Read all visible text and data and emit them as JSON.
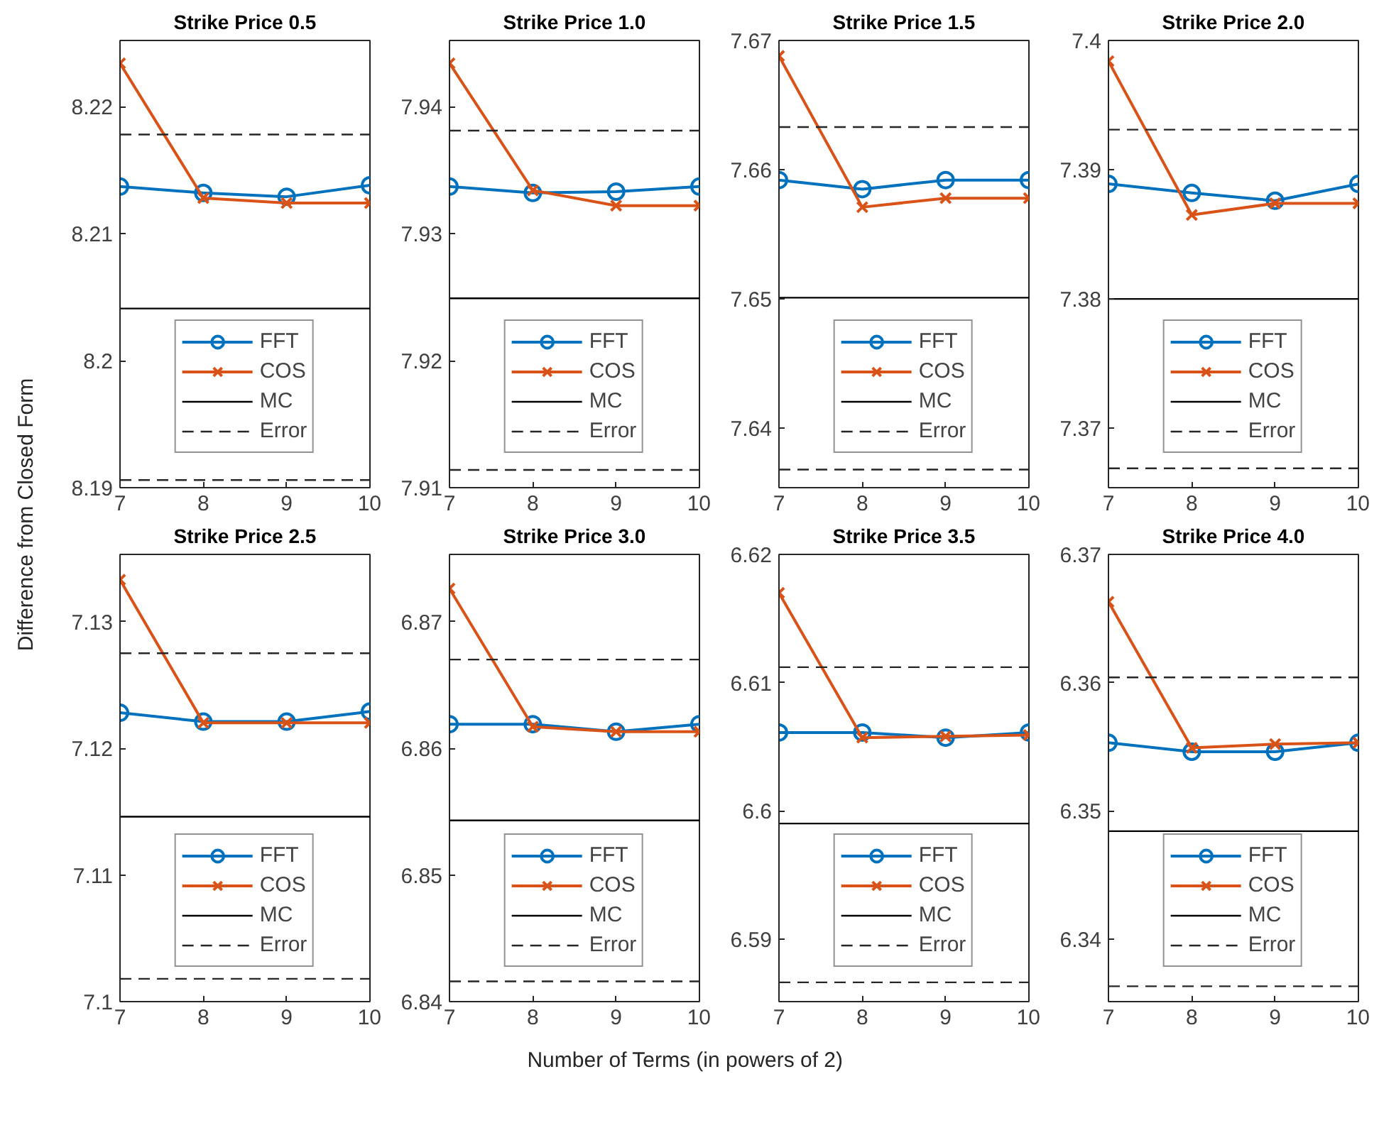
{
  "chart_data": [
    {
      "type": "line",
      "title": "Strike Price 0.5",
      "ylabel": "Difference from Closed Form",
      "x": [
        7,
        8,
        9,
        10
      ],
      "xlim": [
        7,
        10
      ],
      "xticks": [
        7,
        8,
        9,
        10
      ],
      "ylim": [
        8.19,
        8.2252
      ],
      "yticks": [
        8.19,
        8.2,
        8.21,
        8.22
      ],
      "grid": false,
      "legend": "bottom",
      "series": [
        {
          "name": "FFT",
          "color": "#0072bd",
          "marker": "circle",
          "values": [
            8.2137,
            8.2132,
            8.2129,
            8.2138
          ]
        },
        {
          "name": "COS",
          "color": "#d95319",
          "marker": "cross",
          "values": [
            8.2234,
            8.2128,
            8.2124,
            8.2124
          ]
        }
      ],
      "ref_lines": [
        {
          "axis": "y",
          "value": 8.2041,
          "label": "MC",
          "color": "#000000",
          "line_style": "solid"
        },
        {
          "axis": "y",
          "value": 8.2178,
          "label": "Error",
          "color": "#262626",
          "line_style": "dashed"
        },
        {
          "axis": "y",
          "value": 8.1906,
          "color": "#262626",
          "line_style": "dashed"
        }
      ]
    },
    {
      "type": "line",
      "title": "Strike Price 1.0",
      "x": [
        7,
        8,
        9,
        10
      ],
      "xlim": [
        7,
        10
      ],
      "xticks": [
        7,
        8,
        9,
        10
      ],
      "ylim": [
        7.91,
        7.9452
      ],
      "yticks": [
        7.91,
        7.92,
        7.93,
        7.94
      ],
      "grid": false,
      "legend": "bottom",
      "series": [
        {
          "name": "FFT",
          "color": "#0072bd",
          "marker": "circle",
          "values": [
            7.9337,
            7.9332,
            7.9333,
            7.9337
          ]
        },
        {
          "name": "COS",
          "color": "#d95319",
          "marker": "cross",
          "values": [
            7.9434,
            7.9334,
            7.9322,
            7.9322
          ]
        }
      ],
      "ref_lines": [
        {
          "axis": "y",
          "value": 7.9249,
          "label": "MC",
          "color": "#000000",
          "line_style": "solid"
        },
        {
          "axis": "y",
          "value": 7.9381,
          "label": "Error",
          "color": "#262626",
          "line_style": "dashed"
        },
        {
          "axis": "y",
          "value": 7.9114,
          "color": "#262626",
          "line_style": "dashed"
        }
      ]
    },
    {
      "type": "line",
      "title": "Strike Price 1.5",
      "x": [
        7,
        8,
        9,
        10
      ],
      "xlim": [
        7,
        10
      ],
      "xticks": [
        7,
        8,
        9,
        10
      ],
      "ylim": [
        7.6354,
        7.67
      ],
      "yticks": [
        7.64,
        7.65,
        7.66,
        7.67
      ],
      "grid": false,
      "legend": "bottom",
      "series": [
        {
          "name": "FFT",
          "color": "#0072bd",
          "marker": "circle",
          "values": [
            7.6592,
            7.6585,
            7.6592,
            7.6592
          ]
        },
        {
          "name": "COS",
          "color": "#d95319",
          "marker": "cross",
          "values": [
            7.6688,
            7.6571,
            7.6578,
            7.6578
          ]
        }
      ],
      "ref_lines": [
        {
          "axis": "y",
          "value": 7.6501,
          "label": "MC",
          "color": "#000000",
          "line_style": "solid"
        },
        {
          "axis": "y",
          "value": 7.6633,
          "label": "Error",
          "color": "#262626",
          "line_style": "dashed"
        },
        {
          "axis": "y",
          "value": 7.6368,
          "color": "#262626",
          "line_style": "dashed"
        }
      ]
    },
    {
      "type": "line",
      "title": "Strike Price 2.0",
      "x": [
        7,
        8,
        9,
        10
      ],
      "xlim": [
        7,
        10
      ],
      "xticks": [
        7,
        8,
        9,
        10
      ],
      "ylim": [
        7.3654,
        7.4
      ],
      "yticks": [
        7.37,
        7.38,
        7.39,
        7.4
      ],
      "grid": false,
      "legend": "bottom",
      "series": [
        {
          "name": "FFT",
          "color": "#0072bd",
          "marker": "circle",
          "values": [
            7.3889,
            7.3882,
            7.3876,
            7.3889
          ]
        },
        {
          "name": "COS",
          "color": "#d95319",
          "marker": "cross",
          "values": [
            7.3984,
            7.3865,
            7.3874,
            7.3874
          ]
        }
      ],
      "ref_lines": [
        {
          "axis": "y",
          "value": 7.38,
          "label": "MC",
          "color": "#000000",
          "line_style": "solid"
        },
        {
          "axis": "y",
          "value": 7.3931,
          "label": "Error",
          "color": "#262626",
          "line_style": "dashed"
        },
        {
          "axis": "y",
          "value": 7.3669,
          "color": "#262626",
          "line_style": "dashed"
        }
      ]
    },
    {
      "type": "line",
      "title": "Strike Price 2.5",
      "x": [
        7,
        8,
        9,
        10
      ],
      "xlim": [
        7,
        10
      ],
      "xticks": [
        7,
        8,
        9,
        10
      ],
      "ylim": [
        7.1,
        7.1353
      ],
      "yticks": [
        7.1,
        7.11,
        7.12,
        7.13
      ],
      "grid": false,
      "legend": "bottom",
      "series": [
        {
          "name": "FFT",
          "color": "#0072bd",
          "marker": "circle",
          "values": [
            7.1228,
            7.1221,
            7.1221,
            7.1229
          ]
        },
        {
          "name": "COS",
          "color": "#d95319",
          "marker": "cross",
          "values": [
            7.1333,
            7.122,
            7.122,
            7.122
          ]
        }
      ],
      "ref_lines": [
        {
          "axis": "y",
          "value": 7.1146,
          "label": "MC",
          "color": "#000000",
          "line_style": "solid"
        },
        {
          "axis": "y",
          "value": 7.1275,
          "label": "Error",
          "color": "#262626",
          "line_style": "dashed"
        },
        {
          "axis": "y",
          "value": 7.1018,
          "color": "#262626",
          "line_style": "dashed"
        }
      ]
    },
    {
      "type": "line",
      "title": "Strike Price 3.0",
      "xlabel": "Number of Terms (in powers of 2)",
      "x": [
        7,
        8,
        9,
        10
      ],
      "xlim": [
        7,
        10
      ],
      "xticks": [
        7,
        8,
        9,
        10
      ],
      "ylim": [
        6.84,
        6.8753
      ],
      "yticks": [
        6.84,
        6.85,
        6.86,
        6.87
      ],
      "grid": false,
      "legend": "bottom",
      "series": [
        {
          "name": "FFT",
          "color": "#0072bd",
          "marker": "circle",
          "values": [
            6.8619,
            6.8619,
            6.8613,
            6.8619
          ]
        },
        {
          "name": "COS",
          "color": "#d95319",
          "marker": "cross",
          "values": [
            6.8726,
            6.8617,
            6.8613,
            6.8613
          ]
        }
      ],
      "ref_lines": [
        {
          "axis": "y",
          "value": 6.8543,
          "label": "MC",
          "color": "#000000",
          "line_style": "solid"
        },
        {
          "axis": "y",
          "value": 6.867,
          "label": "Error",
          "color": "#262626",
          "line_style": "dashed"
        },
        {
          "axis": "y",
          "value": 6.8416,
          "color": "#262626",
          "line_style": "dashed"
        }
      ]
    },
    {
      "type": "line",
      "title": "Strike Price 3.5",
      "x": [
        7,
        8,
        9,
        10
      ],
      "xlim": [
        7,
        10
      ],
      "xticks": [
        7,
        8,
        9,
        10
      ],
      "ylim": [
        6.5851,
        6.62
      ],
      "yticks": [
        6.59,
        6.6,
        6.61,
        6.62
      ],
      "grid": false,
      "legend": "bottom",
      "series": [
        {
          "name": "FFT",
          "color": "#0072bd",
          "marker": "circle",
          "values": [
            6.6061,
            6.6061,
            6.6057,
            6.6061
          ]
        },
        {
          "name": "COS",
          "color": "#d95319",
          "marker": "cross",
          "values": [
            6.617,
            6.6057,
            6.6058,
            6.6059
          ]
        }
      ],
      "ref_lines": [
        {
          "axis": "y",
          "value": 6.599,
          "label": "MC",
          "color": "#000000",
          "line_style": "solid"
        },
        {
          "axis": "y",
          "value": 6.6112,
          "label": "Error",
          "color": "#262626",
          "line_style": "dashed"
        },
        {
          "axis": "y",
          "value": 6.5866,
          "color": "#262626",
          "line_style": "dashed"
        }
      ]
    },
    {
      "type": "line",
      "title": "Strike Price 4.0",
      "x": [
        7,
        8,
        9,
        10
      ],
      "xlim": [
        7,
        10
      ],
      "xticks": [
        7,
        8,
        9,
        10
      ],
      "ylim": [
        6.3351,
        6.37
      ],
      "yticks": [
        6.34,
        6.35,
        6.36,
        6.37
      ],
      "grid": false,
      "legend": "bottom",
      "series": [
        {
          "name": "FFT",
          "color": "#0072bd",
          "marker": "circle",
          "values": [
            6.3553,
            6.3546,
            6.3546,
            6.3553
          ]
        },
        {
          "name": "COS",
          "color": "#d95319",
          "marker": "cross",
          "values": [
            6.3663,
            6.3549,
            6.3552,
            6.3553
          ]
        }
      ],
      "ref_lines": [
        {
          "axis": "y",
          "value": 6.3484,
          "label": "MC",
          "color": "#000000",
          "line_style": "solid"
        },
        {
          "axis": "y",
          "value": 6.3604,
          "label": "Error",
          "color": "#262626",
          "line_style": "dashed"
        },
        {
          "axis": "y",
          "value": 6.3363,
          "color": "#262626",
          "line_style": "dashed"
        }
      ]
    }
  ]
}
